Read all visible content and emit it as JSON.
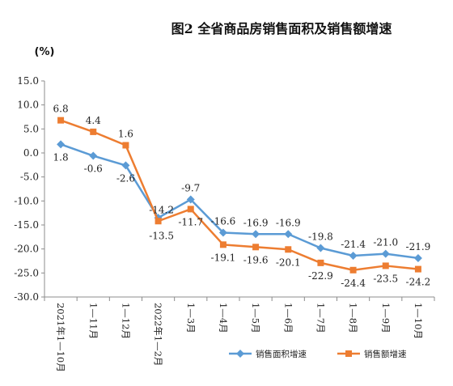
{
  "chart_data": {
    "type": "line",
    "title": "图2 全省商品房销售面积及销售额增速",
    "ylabel": "(%)",
    "xlabel": "",
    "ylim": [
      -30.0,
      15.0
    ],
    "ytick_step": 5.0,
    "yticks": [
      "15.0",
      "10.0",
      "5.0",
      "0.0",
      "-5.0",
      "-10.0",
      "-15.0",
      "-20.0",
      "-25.0",
      "-30.0"
    ],
    "categories": [
      "2021年1—10月",
      "1—11月",
      "1—12月",
      "2022年1—2月",
      "1—3月",
      "1—4月",
      "1—5月",
      "1—6月",
      "1—7月",
      "1—8月",
      "1—9月",
      "1—10月"
    ],
    "grid": false,
    "legend": "bottom-right",
    "series": [
      {
        "name": "销售面积增速",
        "color": "#5B9BD5",
        "marker": "diamond",
        "values": [
          1.8,
          -0.6,
          -2.6,
          -13.5,
          -9.7,
          -16.6,
          -16.9,
          -16.9,
          -19.8,
          -21.4,
          -21.0,
          -21.9
        ],
        "labels": [
          "1.8",
          "-0.6",
          "-2.6",
          "-13.5",
          "-9.7",
          "-16.6",
          "-16.9",
          "-16.9",
          "-19.8",
          "-21.4",
          "-21.0",
          "-21.9"
        ]
      },
      {
        "name": "销售额增速",
        "color": "#ED7D31",
        "marker": "square",
        "values": [
          6.8,
          4.4,
          1.6,
          -14.2,
          -11.7,
          -19.1,
          -19.6,
          -20.1,
          -22.9,
          -24.4,
          -23.5,
          -24.2
        ],
        "labels": [
          "6.8",
          "4.4",
          "1.6",
          "-14.2",
          "-11.7",
          "-19.1",
          "-19.6",
          "-20.1",
          "-22.9",
          "-24.4",
          "-23.5",
          "-24.2"
        ]
      }
    ]
  }
}
